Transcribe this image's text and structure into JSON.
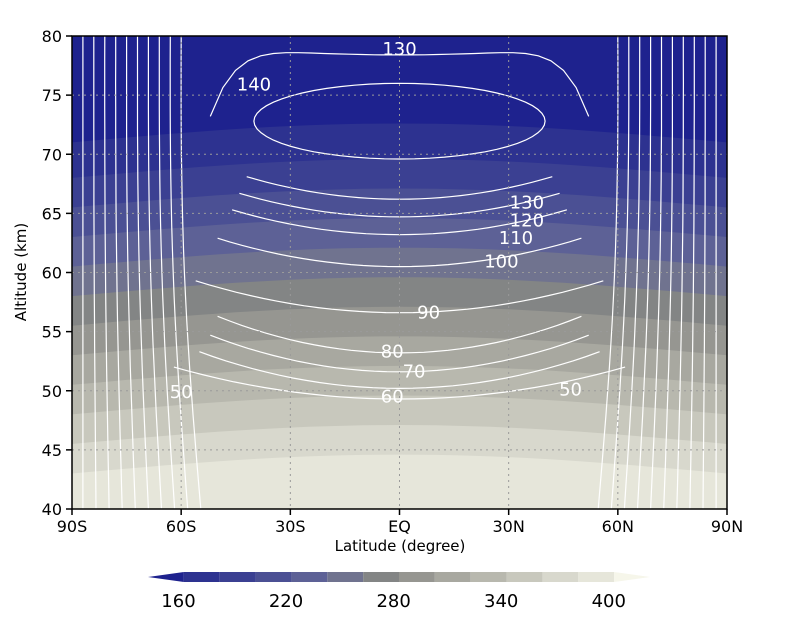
{
  "chart_data": {
    "type": "heatmap",
    "xlabel": "Latitude (degree)",
    "ylabel": "Altitude (km)",
    "xlim": [
      -90,
      90
    ],
    "ylim": [
      40,
      80
    ],
    "x_ticks": [
      {
        "value": -90,
        "label": "90S"
      },
      {
        "value": -60,
        "label": "60S"
      },
      {
        "value": -30,
        "label": "30S"
      },
      {
        "value": 0,
        "label": "EQ"
      },
      {
        "value": 30,
        "label": "30N"
      },
      {
        "value": 60,
        "label": "60N"
      },
      {
        "value": 90,
        "label": "90N"
      }
    ],
    "y_ticks": [
      {
        "value": 40,
        "label": "40"
      },
      {
        "value": 45,
        "label": "45"
      },
      {
        "value": 50,
        "label": "50"
      },
      {
        "value": 55,
        "label": "55"
      },
      {
        "value": 60,
        "label": "60"
      },
      {
        "value": 65,
        "label": "65"
      },
      {
        "value": 70,
        "label": "70"
      },
      {
        "value": 75,
        "label": "75"
      },
      {
        "value": 80,
        "label": "80"
      }
    ],
    "grid": true,
    "filled_levels": [
      {
        "max_alt": 80,
        "color": "#1e228e"
      },
      {
        "max_alt": 71,
        "color": "#2d3290"
      },
      {
        "max_alt": 68,
        "color": "#3b4092"
      },
      {
        "max_alt": 65.5,
        "color": "#4b5094"
      },
      {
        "max_alt": 63,
        "color": "#5d6196"
      },
      {
        "max_alt": 60.5,
        "color": "#70738f"
      },
      {
        "max_alt": 58,
        "color": "#838585"
      },
      {
        "max_alt": 55.5,
        "color": "#969691"
      },
      {
        "max_alt": 53,
        "color": "#a8a8a0"
      },
      {
        "max_alt": 50.5,
        "color": "#b8b8ae"
      },
      {
        "max_alt": 48,
        "color": "#c8c8bd"
      },
      {
        "max_alt": 45.5,
        "color": "#d8d8cd"
      },
      {
        "max_alt": 43,
        "color": "#e6e6da"
      }
    ],
    "contour_labels": [
      {
        "text": "130",
        "lat": 0,
        "alt": 79
      },
      {
        "text": "140",
        "lat": -40,
        "alt": 76
      },
      {
        "text": "130",
        "lat": 35,
        "alt": 66
      },
      {
        "text": "120",
        "lat": 35,
        "alt": 64.5
      },
      {
        "text": "110",
        "lat": 32,
        "alt": 63
      },
      {
        "text": "100",
        "lat": 28,
        "alt": 61
      },
      {
        "text": "90",
        "lat": 8,
        "alt": 56.7
      },
      {
        "text": "80",
        "lat": -2,
        "alt": 53.4
      },
      {
        "text": "70",
        "lat": 4,
        "alt": 51.7
      },
      {
        "text": "60",
        "lat": -2,
        "alt": 49.6
      },
      {
        "text": "50",
        "lat": -60,
        "alt": 50
      },
      {
        "text": "50",
        "lat": 47,
        "alt": 50.2
      }
    ],
    "colorbar": {
      "colors": [
        "#1e228e",
        "#2d3290",
        "#3b4092",
        "#4b5094",
        "#5d6196",
        "#70738f",
        "#838585",
        "#969691",
        "#a8a8a0",
        "#b8b8ae",
        "#c8c8bd",
        "#d8d8cd",
        "#e6e6da",
        "#f6f6ea"
      ],
      "tick_labels": [
        "160",
        "220",
        "280",
        "340",
        "400"
      ]
    }
  }
}
